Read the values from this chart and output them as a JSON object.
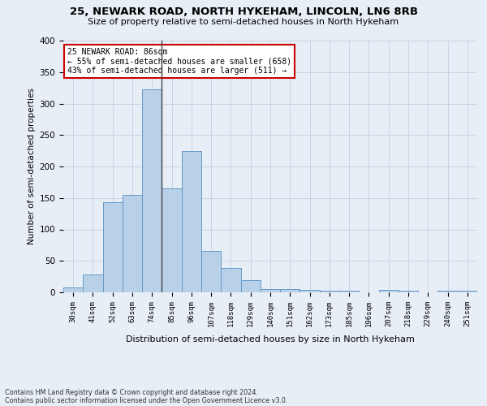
{
  "title1": "25, NEWARK ROAD, NORTH HYKEHAM, LINCOLN, LN6 8RB",
  "title2": "Size of property relative to semi-detached houses in North Hykeham",
  "xlabel": "Distribution of semi-detached houses by size in North Hykeham",
  "ylabel": "Number of semi-detached properties",
  "footnote1": "Contains HM Land Registry data © Crown copyright and database right 2024.",
  "footnote2": "Contains public sector information licensed under the Open Government Licence v3.0.",
  "annotation_title": "25 NEWARK ROAD: 86sqm",
  "annotation_line1": "← 55% of semi-detached houses are smaller (658)",
  "annotation_line2": "43% of semi-detached houses are larger (511) →",
  "subject_bar_index": 5,
  "categories": [
    "30sqm",
    "41sqm",
    "52sqm",
    "63sqm",
    "74sqm",
    "85sqm",
    "96sqm",
    "107sqm",
    "118sqm",
    "129sqm",
    "140sqm",
    "151sqm",
    "162sqm",
    "173sqm",
    "185sqm",
    "196sqm",
    "207sqm",
    "218sqm",
    "229sqm",
    "240sqm",
    "251sqm"
  ],
  "values": [
    8,
    29,
    143,
    155,
    323,
    165,
    224,
    66,
    39,
    20,
    5,
    5,
    4,
    3,
    3,
    0,
    4,
    3,
    0,
    3,
    2
  ],
  "bar_color": "#b8d0e8",
  "bar_edge_color": "#6699cc",
  "subject_line_color": "#444444",
  "annotation_box_color": "#ffffff",
  "annotation_box_edge": "#cc0000",
  "grid_color": "#c8d4e4",
  "background_color": "#e8eef6",
  "ylim": [
    0,
    400
  ],
  "yticks": [
    0,
    50,
    100,
    150,
    200,
    250,
    300,
    350,
    400
  ]
}
